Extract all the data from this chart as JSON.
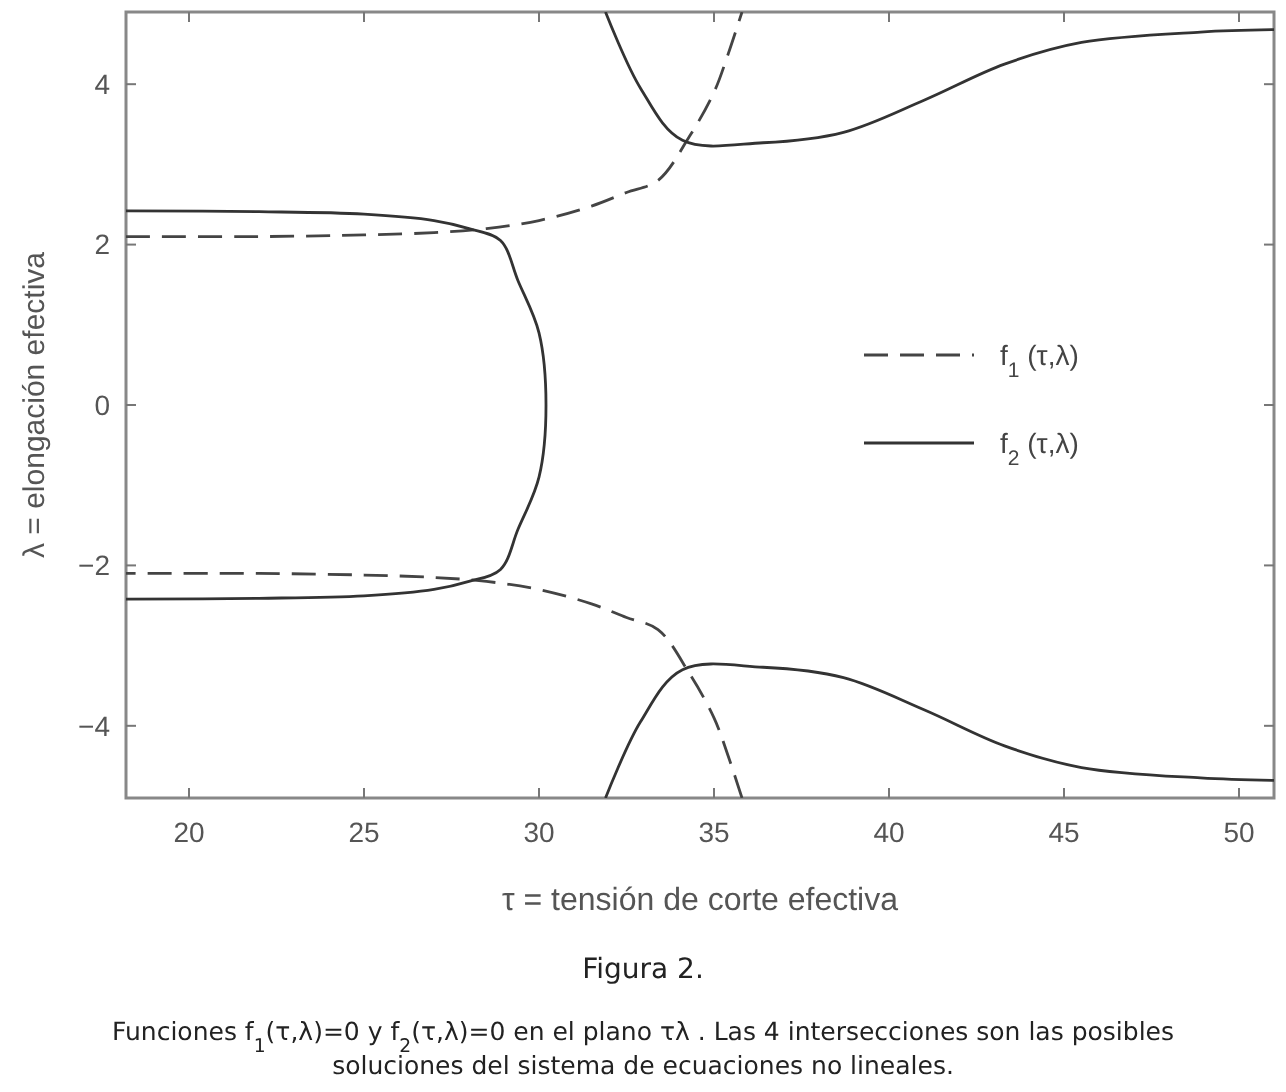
{
  "chart_data": {
    "type": "line",
    "xlabel": "τ = tensión de corte efectiva",
    "ylabel": "λ = elongación efectiva",
    "xlim": [
      18.2,
      51
    ],
    "ylim": [
      -4.9,
      4.9
    ],
    "xticks": [
      20,
      25,
      30,
      35,
      40,
      45,
      50
    ],
    "yticks": [
      -4,
      -2,
      0,
      2,
      4
    ],
    "grid": false,
    "legend": "right",
    "marker": "none",
    "series": [
      {
        "name": "f$_{1}$ (τ,λ)",
        "color": "#444444",
        "line_style": "dashed",
        "x": [
          18.2,
          22,
          25,
          27,
          28.5,
          30,
          31.5,
          32.5,
          33.4,
          34.3,
          35,
          35.4,
          35.8
        ],
        "values": [
          2.1,
          2.1,
          2.12,
          2.15,
          2.2,
          2.3,
          2.48,
          2.65,
          2.8,
          3.35,
          3.9,
          4.37,
          4.9
        ]
      },
      {
        "color": "#444444",
        "line_style": "dashed",
        "x": [
          35.8,
          35.4,
          35,
          34.3,
          33.4,
          32.5,
          31.5,
          30,
          28.5,
          27,
          25,
          22,
          18.2
        ],
        "values": [
          -4.9,
          -4.37,
          -3.9,
          -3.35,
          -2.8,
          -2.65,
          -2.48,
          -2.3,
          -2.2,
          -2.15,
          -2.12,
          -2.1,
          -2.1
        ]
      },
      {
        "name": "f$_{2}$ (τ,λ)",
        "color": "#333333",
        "line_style": "solid",
        "x": [
          18.2,
          22,
          25,
          27,
          28,
          28.9,
          29.4,
          30,
          30.2,
          30,
          29.4,
          28.9,
          28,
          27,
          25,
          22,
          18.2
        ],
        "values": [
          2.42,
          2.41,
          2.38,
          2.3,
          2.2,
          2.05,
          1.55,
          0.9,
          0,
          -0.9,
          -1.55,
          -2.05,
          -2.2,
          -2.3,
          -2.38,
          -2.41,
          -2.42
        ]
      },
      {
        "color": "#333333",
        "line_style": "solid",
        "x": [
          31.9,
          32.9,
          34.1,
          36.4,
          38.7,
          41,
          43.3,
          45.5,
          48.9,
          51
        ],
        "values": [
          4.9,
          3.95,
          3.3,
          3.27,
          3.4,
          3.8,
          4.25,
          4.52,
          4.65,
          4.68
        ]
      },
      {
        "color": "#333333",
        "line_style": "solid",
        "x": [
          31.9,
          32.9,
          34.1,
          36.4,
          38.7,
          41,
          43.3,
          45.5,
          48.9,
          51
        ],
        "values": [
          -4.9,
          -3.95,
          -3.3,
          -3.27,
          -3.4,
          -3.8,
          -4.25,
          -4.52,
          -4.65,
          -4.68
        ]
      }
    ],
    "annotations": [
      "Figura 2.",
      "Funciones f$_{1}$(τ,λ)=0 y f$_{2}$(τ,λ)=0 en el plano τλ . Las 4 intersecciones son las posibles soluciones del sistema de ecuaciones no lineales."
    ]
  }
}
